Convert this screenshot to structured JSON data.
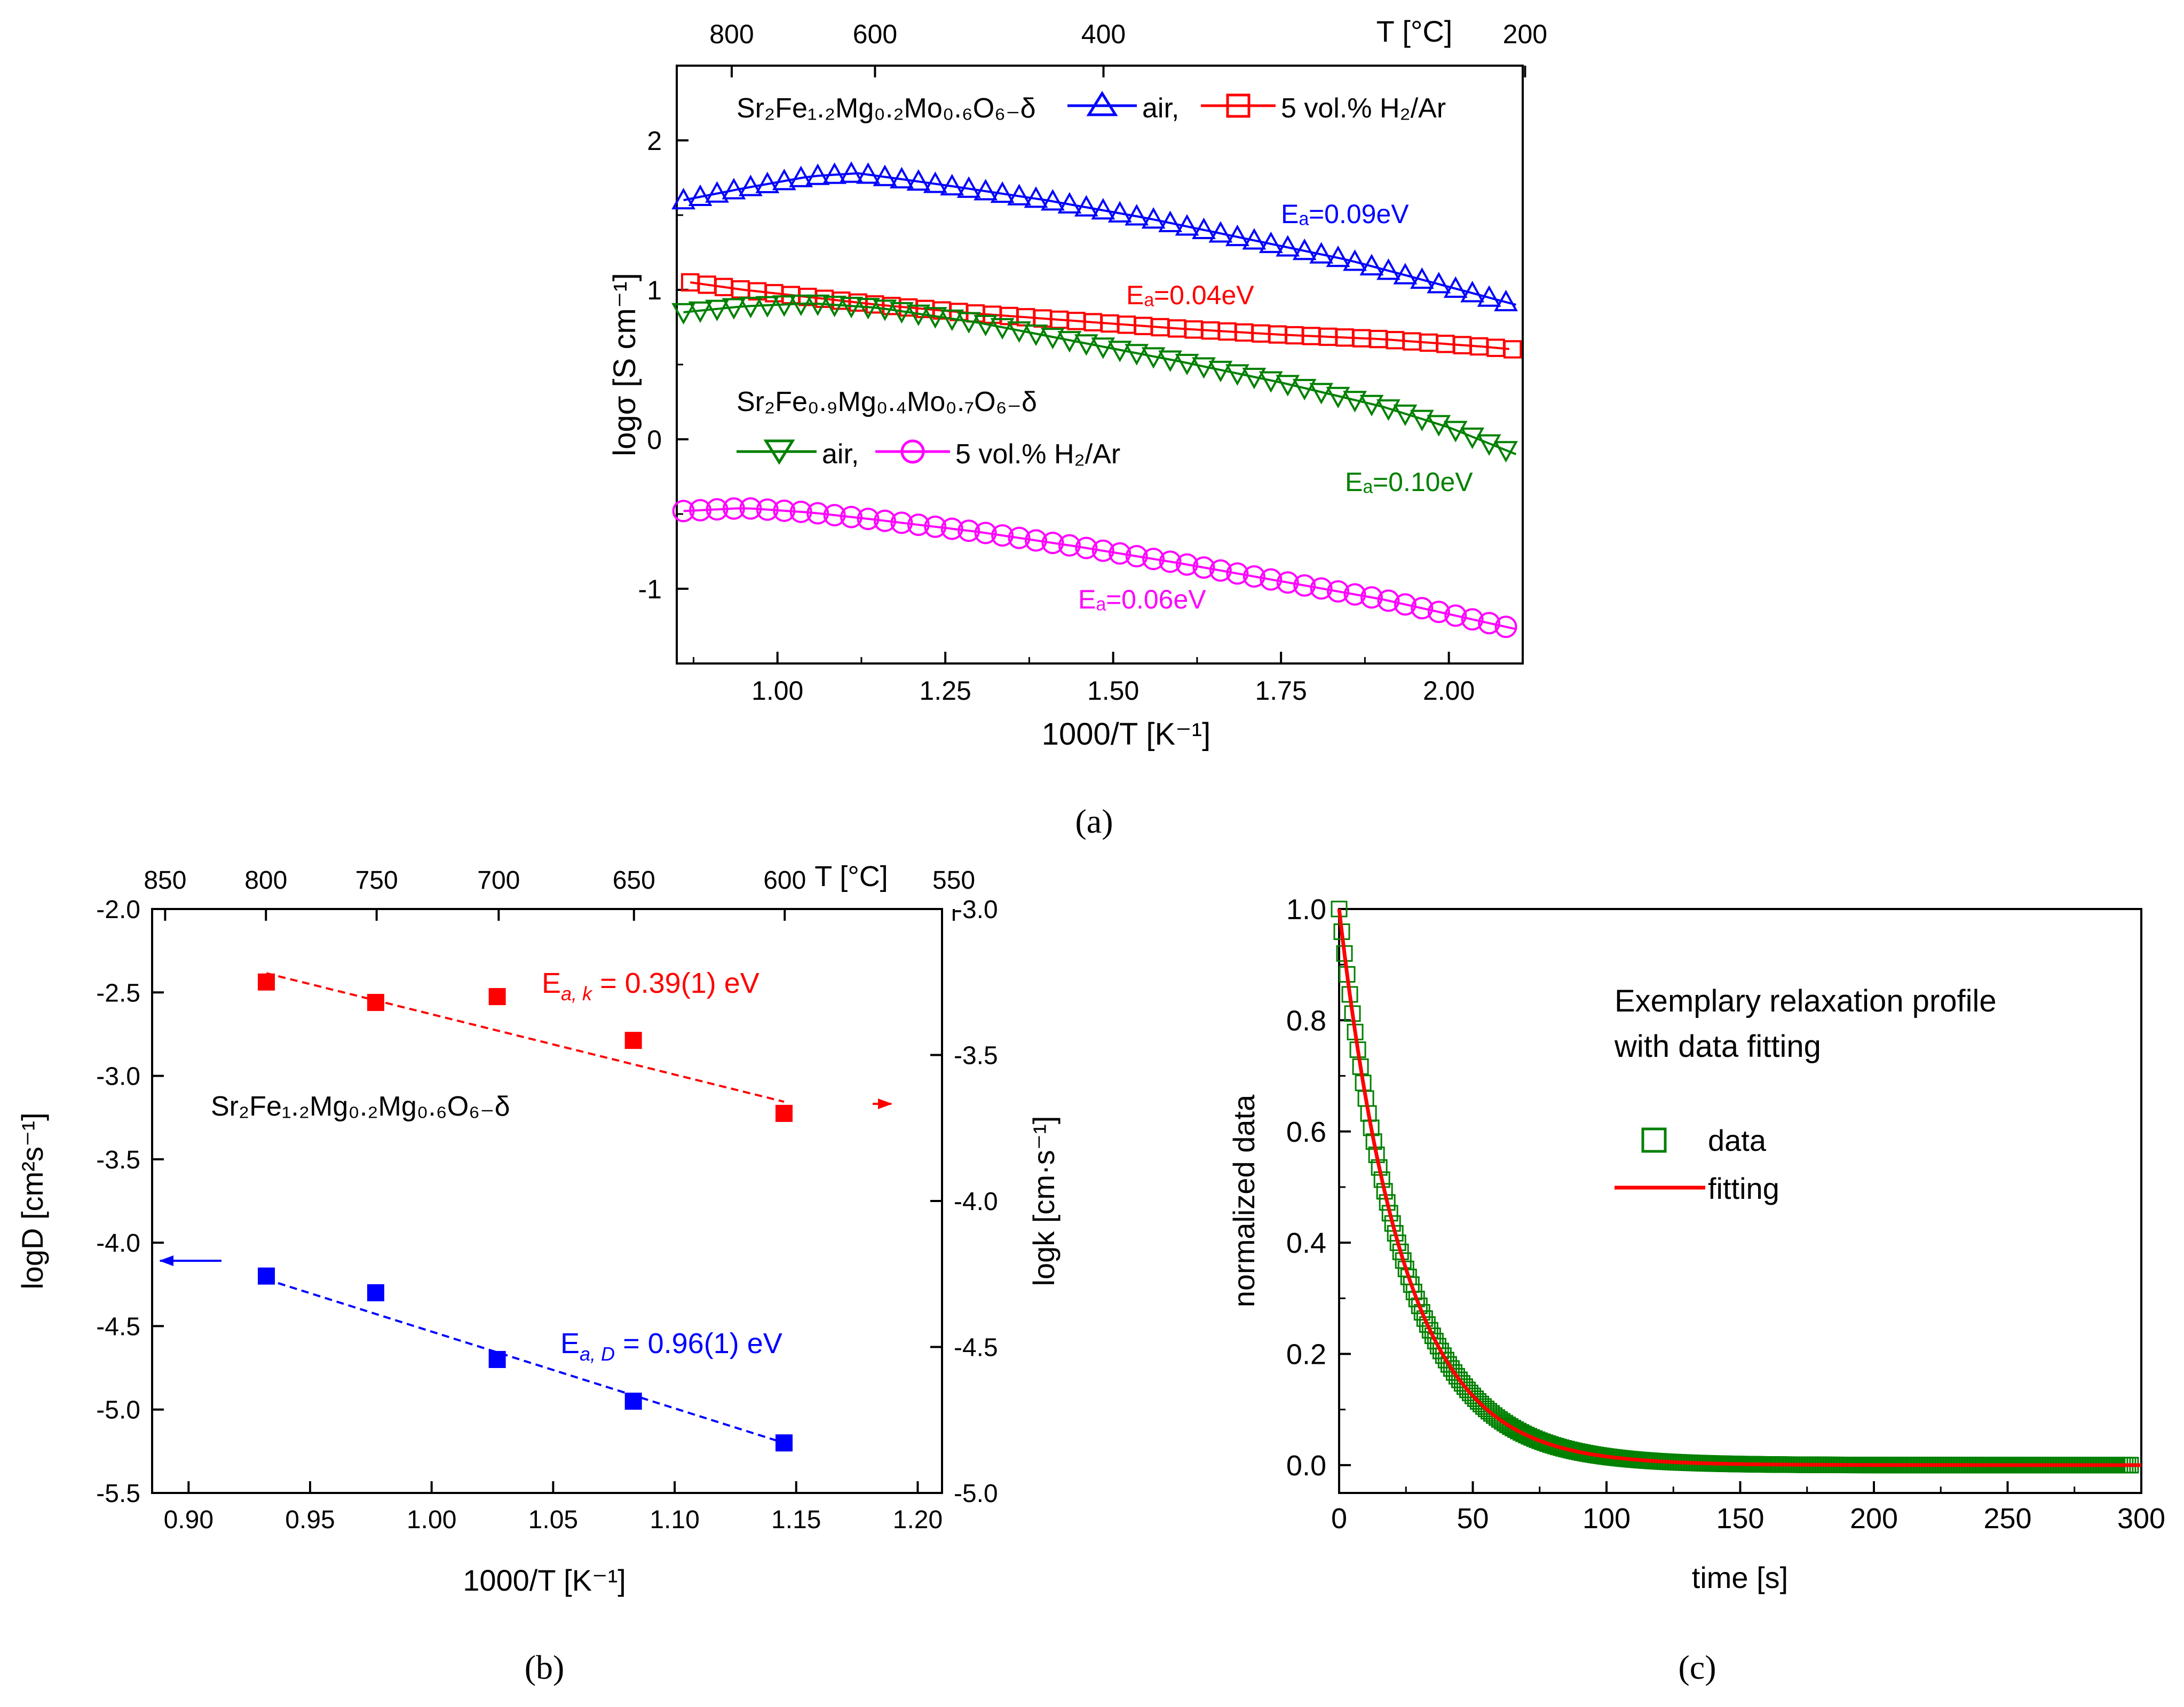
{
  "colors": {
    "blue": "#0000ff",
    "red": "#ff0000",
    "green": "#008000",
    "magenta": "#ff00ff",
    "black": "#000000"
  },
  "panel_labels": [
    "(a)",
    "(b)",
    "(c)"
  ],
  "chart_data": [
    {
      "panel": "a",
      "type": "scatter",
      "xlabel": "1000/T [K⁻¹]",
      "ylabel": "logσ [S cm⁻¹]",
      "xlim": [
        0.85,
        2.11
      ],
      "ylim": [
        -1.5,
        2.5
      ],
      "xticks": [
        "1.00",
        "1.25",
        "1.50",
        "1.75",
        "2.00"
      ],
      "yticks": [
        "-1",
        "0",
        "1",
        "2"
      ],
      "top_axis": {
        "label": "T [°C]",
        "ticks": [
          "800",
          "600",
          "400",
          "200"
        ]
      },
      "annotations": {
        "compound_1": "Sr₂Fe₁.₂Mg₀.₂Mo₀.₆O₆₋δ",
        "compound_2": "Sr₂Fe₀.₉Mg₀.₄Mo₀.₇O₆₋δ",
        "legend_1": [
          "air,",
          "5 vol.% H₂/Ar"
        ],
        "legend_2": [
          "air,",
          "5 vol.% H₂/Ar"
        ],
        "ea_labels": [
          "Eₐ=0.09eV",
          "Eₐ=0.04eV",
          "Eₐ=0.10eV",
          "Eₐ=0.06eV"
        ]
      },
      "series": [
        {
          "name": "air",
          "compound": "Sr₂Fe₁.₂Mg₀.₂Mo₀.₆O₆₋δ",
          "marker": "triangle-up",
          "color": "blue",
          "x": [
            0.86,
            0.95,
            1.05,
            1.12,
            1.25,
            1.4,
            1.55,
            1.7,
            1.85,
            2.0,
            2.1
          ],
          "y": [
            1.6,
            1.68,
            1.76,
            1.78,
            1.7,
            1.6,
            1.48,
            1.34,
            1.2,
            1.02,
            0.9
          ]
        },
        {
          "name": "5 vol.% H₂/Ar",
          "compound": "Sr₂Fe₁.₂Mg₀.₂Mo₀.₆O₆₋δ",
          "marker": "square",
          "color": "red",
          "x": [
            0.87,
            0.95,
            1.05,
            1.15,
            1.3,
            1.45,
            1.6,
            1.75,
            1.9,
            2.05,
            2.1
          ],
          "y": [
            1.05,
            1.0,
            0.95,
            0.9,
            0.84,
            0.79,
            0.74,
            0.7,
            0.67,
            0.62,
            0.6
          ]
        },
        {
          "name": "air",
          "compound": "Sr₂Fe₀.₉Mg₀.₄Mo₀.₇O₆₋δ",
          "marker": "triangle-down",
          "color": "green",
          "x": [
            0.86,
            0.95,
            1.05,
            1.15,
            1.3,
            1.45,
            1.6,
            1.75,
            1.9,
            2.0,
            2.1
          ],
          "y": [
            0.85,
            0.89,
            0.91,
            0.88,
            0.78,
            0.65,
            0.52,
            0.38,
            0.22,
            0.08,
            -0.1
          ]
        },
        {
          "name": "5 vol.% H₂/Ar",
          "compound": "Sr₂Fe₀.₉Mg₀.₄Mo₀.₇O₆₋δ",
          "marker": "circle",
          "color": "magenta",
          "x": [
            0.86,
            0.95,
            1.05,
            1.15,
            1.3,
            1.45,
            1.6,
            1.75,
            1.9,
            2.0,
            2.1
          ],
          "y": [
            -0.48,
            -0.46,
            -0.49,
            -0.54,
            -0.62,
            -0.72,
            -0.83,
            -0.95,
            -1.07,
            -1.17,
            -1.27
          ]
        }
      ]
    },
    {
      "panel": "b",
      "type": "scatter",
      "xlabel": "1000/T [K⁻¹]",
      "ylabel_left": "logD [cm²s⁻¹]",
      "ylabel_right": "logk [cm·s⁻¹]",
      "xlim": [
        0.885,
        1.21
      ],
      "ylim_left": [
        -5.5,
        -2.0
      ],
      "ylim_right": [
        -5.0,
        -3.0
      ],
      "xticks": [
        "0.90",
        "0.95",
        "1.00",
        "1.05",
        "1.10",
        "1.15",
        "1.20"
      ],
      "yticks_left": [
        "-2.0",
        "-2.5",
        "-3.0",
        "-3.5",
        "-4.0",
        "-4.5",
        "-5.0",
        "-5.5"
      ],
      "yticks_right": [
        "-3.0",
        "-3.5",
        "-4.0",
        "-4.5",
        "-5.0"
      ],
      "top_axis": {
        "label": "T [°C]",
        "ticks": [
          "850",
          "800",
          "750",
          "700",
          "650",
          "600",
          "550"
        ]
      },
      "annotations": {
        "compound": "Sr₂Fe₁.₂Mg₀.₂Mg₀.₆O₆₋δ",
        "ea_k_label": "E",
        "ea_k_sub": "a, k",
        "ea_k_value": " = 0.39(1) eV",
        "ea_d_label": "E",
        "ea_d_sub": "a, D",
        "ea_d_value": " = 0.96(1) eV"
      },
      "series": [
        {
          "name": "k",
          "axis": "right",
          "color": "red",
          "marker": "filled-square",
          "x": [
            0.932,
            0.977,
            1.027,
            1.083,
            1.145
          ],
          "y": [
            -3.25,
            -3.32,
            -3.3,
            -3.45,
            -3.7
          ]
        },
        {
          "name": "D",
          "axis": "left",
          "color": "blue",
          "marker": "filled-square",
          "x": [
            0.932,
            0.977,
            1.027,
            1.083,
            1.145
          ],
          "y": [
            -4.2,
            -4.3,
            -4.7,
            -4.95,
            -5.2
          ]
        }
      ],
      "fits": [
        {
          "series": "k",
          "x": [
            0.932,
            1.145
          ],
          "y": [
            -3.22,
            -3.66
          ]
        },
        {
          "series": "D",
          "x": [
            0.932,
            1.145
          ],
          "y": [
            -4.22,
            -5.2
          ]
        }
      ]
    },
    {
      "panel": "c",
      "type": "scatter",
      "xlabel": "time [s]",
      "ylabel": "normalized data",
      "xlim": [
        0,
        300
      ],
      "ylim": [
        -0.05,
        1.0
      ],
      "xticks": [
        "0",
        "50",
        "100",
        "150",
        "200",
        "250",
        "300"
      ],
      "yticks": [
        "0.0",
        "0.2",
        "0.4",
        "0.6",
        "0.8",
        "1.0"
      ],
      "annotation": [
        "Exemplary relaxation profile",
        "with data fitting"
      ],
      "legend": [
        "data",
        "fitting"
      ],
      "series": [
        {
          "name": "data",
          "marker": "open-square",
          "color": "green",
          "decay_time_s": 24,
          "x_range": [
            0,
            296
          ]
        },
        {
          "name": "fitting",
          "line": true,
          "color": "red",
          "decay_time_s": 24,
          "x_range": [
            0,
            300
          ]
        }
      ]
    }
  ]
}
